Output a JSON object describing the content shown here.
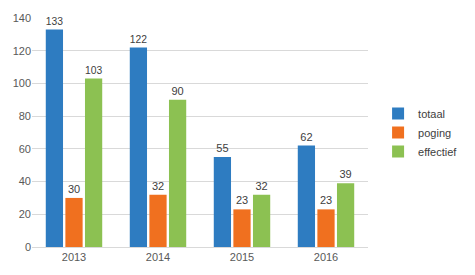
{
  "chart_data": {
    "type": "bar",
    "categories": [
      "2013",
      "2014",
      "2015",
      "2016"
    ],
    "series": [
      {
        "name": "totaal",
        "color": "#2e7cc1",
        "values": [
          133,
          122,
          55,
          62
        ]
      },
      {
        "name": "poging",
        "color": "#f0701f",
        "values": [
          30,
          32,
          23,
          23
        ]
      },
      {
        "name": "effectief",
        "color": "#8cc152",
        "values": [
          103,
          90,
          32,
          39
        ]
      }
    ],
    "ylim": [
      0,
      140
    ],
    "yticks": [
      0,
      20,
      40,
      60,
      80,
      100,
      120,
      140
    ],
    "grid": true,
    "legend": "right",
    "data_labels": true
  }
}
